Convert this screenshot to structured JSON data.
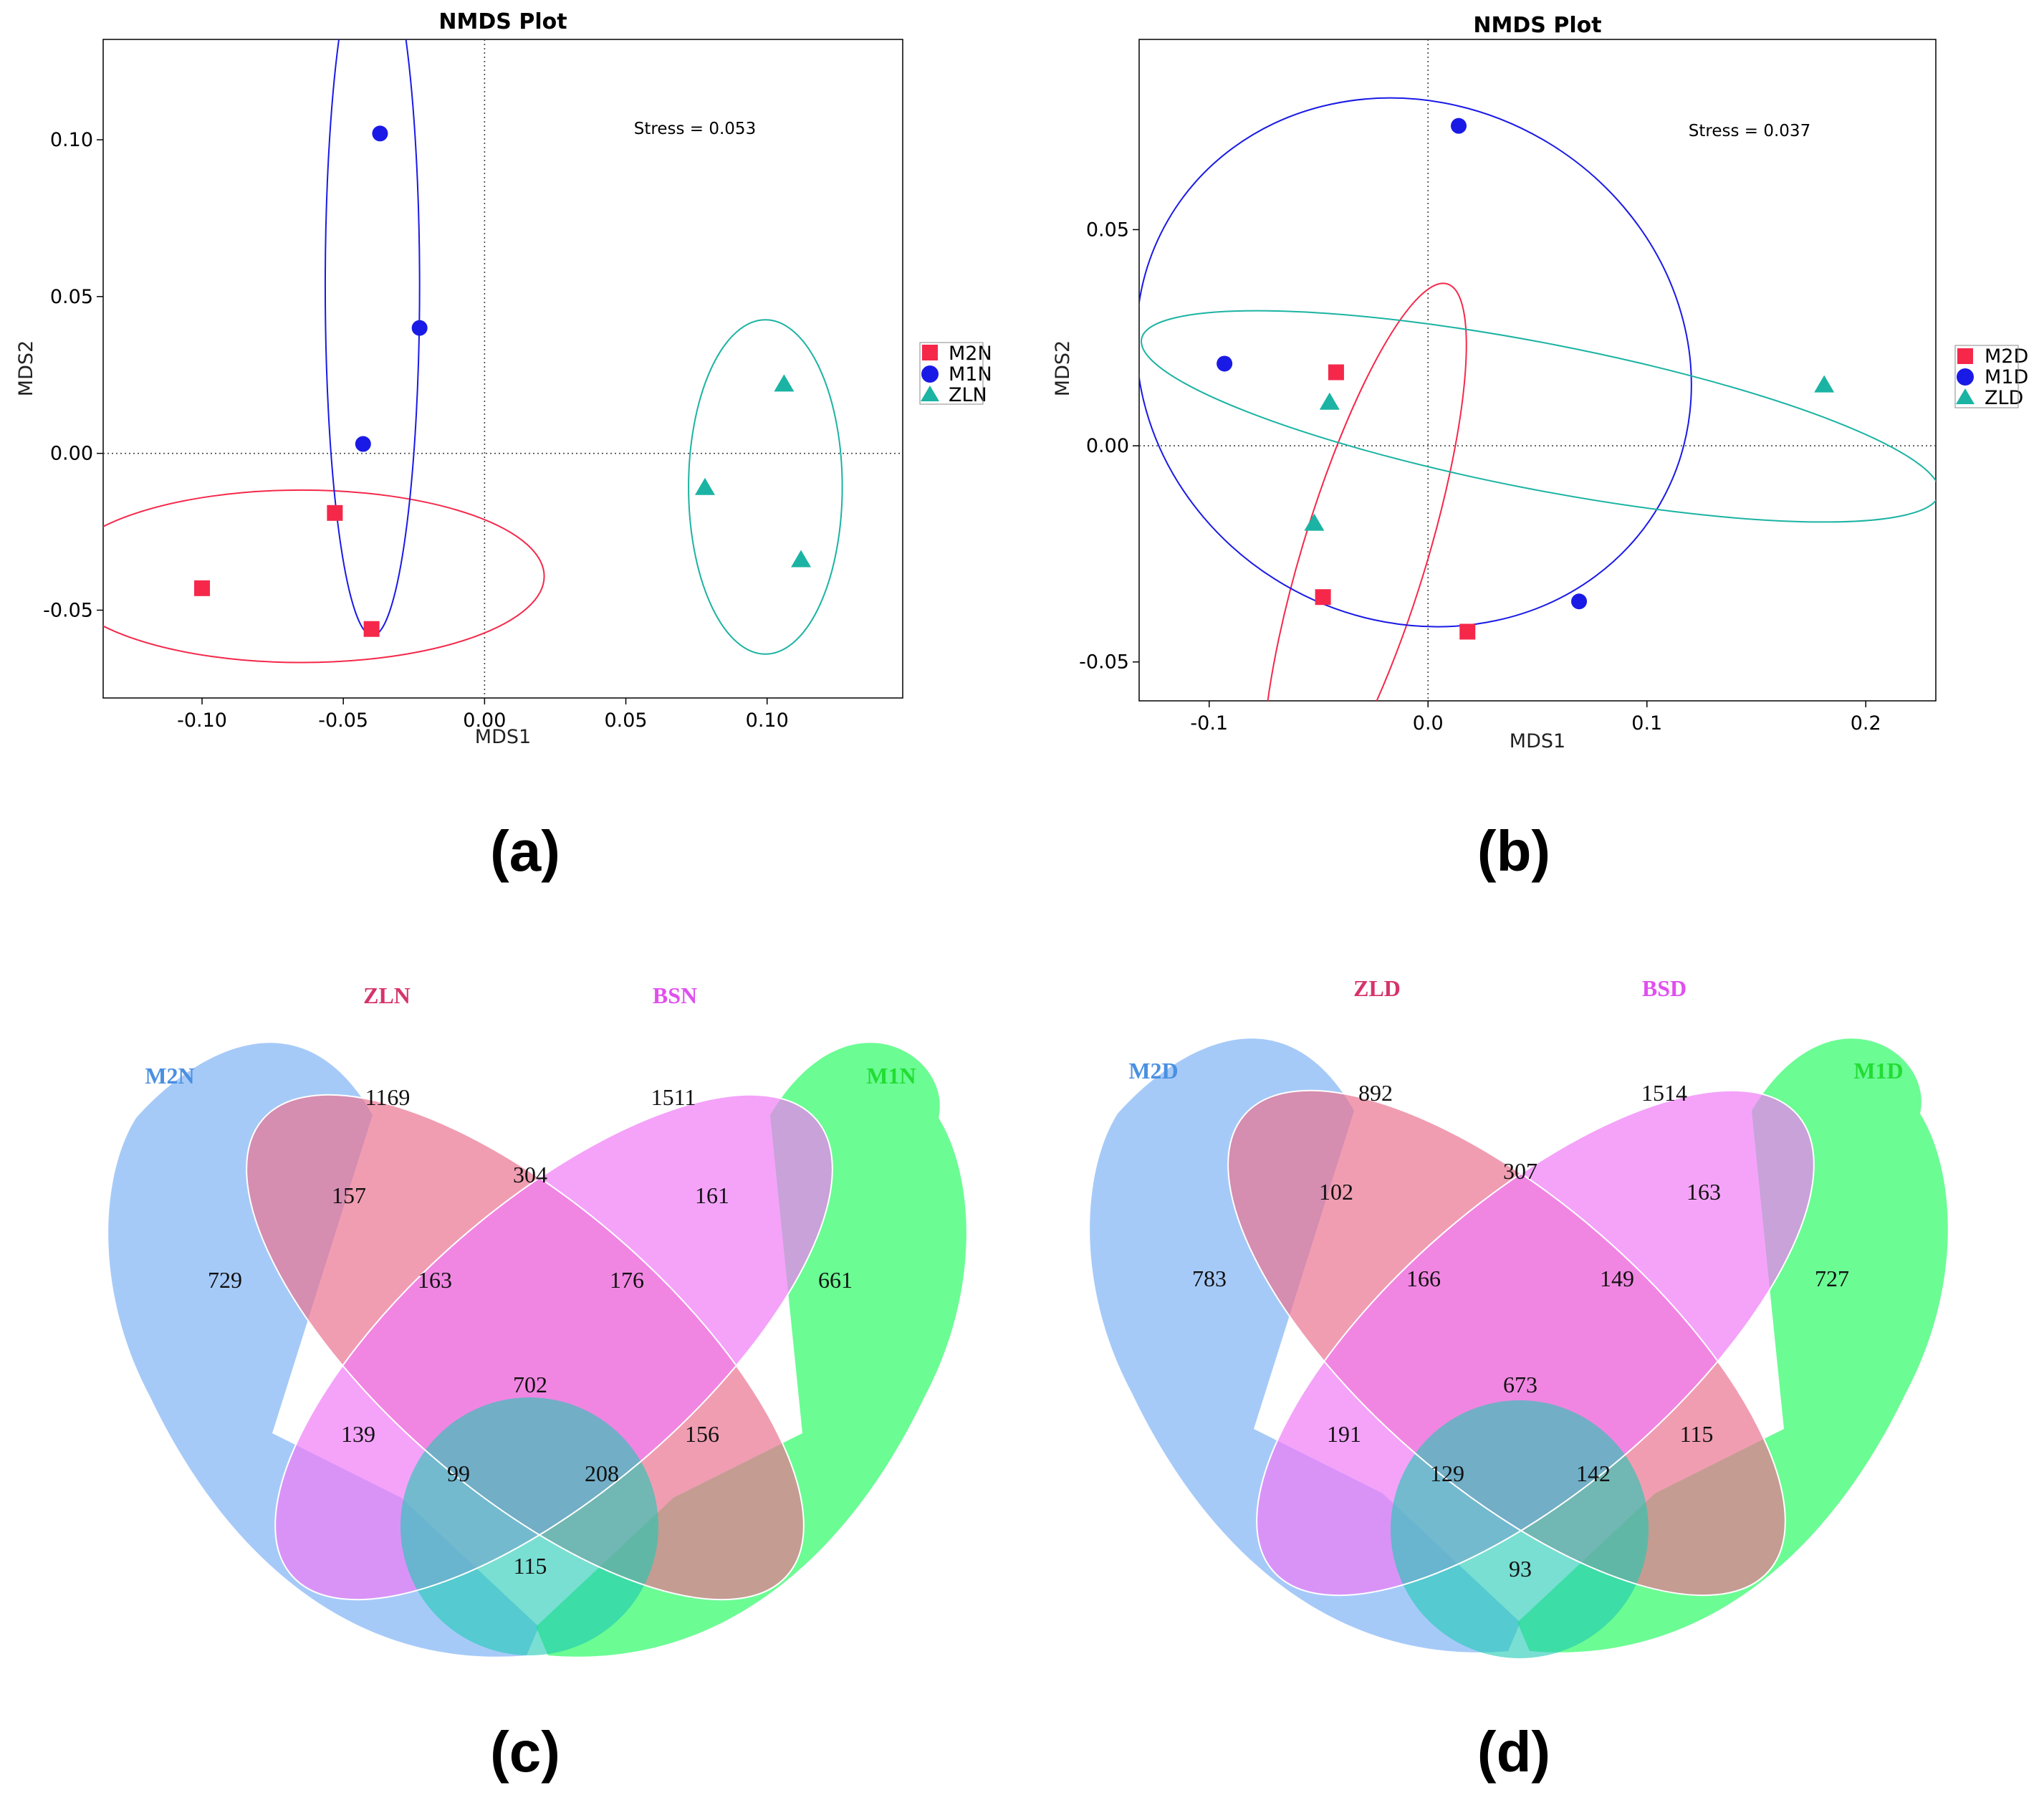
{
  "colors": {
    "red": "#f5284a",
    "blue": "#1a1ae6",
    "teal": "#1bb3a3",
    "venn_blue": "#88b8f5",
    "venn_pink": "#e97492",
    "venn_magenta": "#f07cf7",
    "venn_green": "#2cfb66",
    "venn_teal": "#1ec9b4",
    "label_blue": "#4a90e2",
    "label_crimson": "#d6336c",
    "label_magenta": "#e04ff0",
    "label_green": "#22dd33"
  },
  "panels": {
    "a": "(a)",
    "b": "(b)",
    "c": "(c)",
    "d": "(d)"
  },
  "chart_data": [
    {
      "id": "a",
      "type": "scatter",
      "title": "NMDS Plot",
      "xlabel": "MDS1",
      "ylabel": "MDS2",
      "xlim": [
        -0.135,
        0.148
      ],
      "ylim": [
        -0.078,
        0.132
      ],
      "xticks": [
        -0.1,
        -0.05,
        0.0,
        0.05,
        0.1
      ],
      "xtick_labels": [
        "-0.10",
        "-0.05",
        "0.00",
        "0.05",
        "0.10"
      ],
      "yticks": [
        -0.05,
        0.0,
        0.05,
        0.1
      ],
      "ytick_labels": [
        "-0.05",
        "0.00",
        "0.05",
        "0.10"
      ],
      "annotation": "Stress = 0.053",
      "legend_position": "right",
      "series": [
        {
          "name": "M2N",
          "marker": "square",
          "color": "red",
          "points": [
            [
              -0.053,
              -0.019
            ],
            [
              -0.1,
              -0.043
            ],
            [
              -0.04,
              -0.056
            ]
          ],
          "ellipse": {
            "cx": -0.0648,
            "cy": -0.0392,
            "rx": 0.0859,
            "ry": 0.0275,
            "angle_deg": 0
          }
        },
        {
          "name": "M1N",
          "marker": "circle",
          "color": "blue",
          "points": [
            [
              -0.037,
              0.102
            ],
            [
              -0.023,
              0.04
            ],
            [
              -0.043,
              0.003
            ]
          ],
          "ellipse": {
            "cx": -0.0397,
            "cy": 0.0535,
            "rx": 0.0167,
            "ry": 0.1116,
            "angle_deg": 0
          }
        },
        {
          "name": "ZLN",
          "marker": "triangle",
          "color": "teal",
          "points": [
            [
              0.106,
              0.022
            ],
            [
              0.078,
              -0.011
            ],
            [
              0.112,
              -0.034
            ]
          ],
          "ellipse": {
            "cx": 0.0994,
            "cy": -0.0107,
            "rx": 0.0272,
            "ry": 0.0533,
            "angle_deg": 0
          }
        }
      ]
    },
    {
      "id": "b",
      "type": "scatter",
      "title": "NMDS Plot",
      "xlabel": "MDS1",
      "ylabel": "MDS2",
      "xlim": [
        -0.132,
        0.232
      ],
      "ylim": [
        -0.059,
        0.094
      ],
      "xticks": [
        -0.1,
        0.0,
        0.1,
        0.2
      ],
      "xtick_labels": [
        "-0.1",
        "0.0",
        "0.1",
        "0.2"
      ],
      "yticks": [
        -0.05,
        0.0,
        0.05
      ],
      "ytick_labels": [
        "-0.05",
        "0.00",
        "0.05"
      ],
      "annotation": "Stress = 0.037",
      "legend_position": "right",
      "series": [
        {
          "name": "M2D",
          "marker": "square",
          "color": "red",
          "points": [
            [
              -0.042,
              0.017
            ],
            [
              -0.048,
              -0.035
            ],
            [
              0.018,
              -0.043
            ]
          ],
          "ellipse": {
            "cx": -0.029,
            "cy": -0.0252,
            "rx": 0.0283,
            "ry": 0.0655,
            "angle_deg": 17
          }
        },
        {
          "name": "M1D",
          "marker": "circle",
          "color": "blue",
          "points": [
            [
              0.014,
              0.074
            ],
            [
              -0.093,
              0.019
            ],
            [
              0.069,
              -0.036
            ]
          ],
          "ellipse": {
            "cx": -0.0065,
            "cy": 0.0193,
            "rx": 0.1176,
            "ry": 0.0657,
            "angle_deg": -60
          }
        },
        {
          "name": "ZLD",
          "marker": "triangle",
          "color": "teal",
          "points": [
            [
              0.181,
              0.014
            ],
            [
              -0.045,
              0.01
            ],
            [
              -0.052,
              -0.018
            ]
          ],
          "ellipse": {
            "cx": 0.0513,
            "cy": 0.0068,
            "rx": 0.1856,
            "ry": 0.0169,
            "angle_deg": 11
          }
        }
      ]
    },
    {
      "id": "c",
      "type": "venn",
      "sets": [
        "M2N",
        "ZLN",
        "BSN",
        "M1N"
      ],
      "regions": {
        "M2N_only": 729,
        "ZLN_only": 1169,
        "BSN_only": 1511,
        "M1N_only": 661,
        "M2N_ZLN": 157,
        "ZLN_BSN": 304,
        "BSN_M1N": 161,
        "M2N_ZLN_BSN": 163,
        "ZLN_BSN_M1N": 176,
        "all": 702,
        "M2N_BSN": 139,
        "ZLN_M1N": 156,
        "M2N_BSN_M1N": 99,
        "M2N_ZLN_M1N": 208,
        "M2N_M1N": 115
      }
    },
    {
      "id": "d",
      "type": "venn",
      "sets": [
        "M2D",
        "ZLD",
        "BSD",
        "M1D"
      ],
      "regions": {
        "M2D_only": 783,
        "ZLD_only": 892,
        "BSD_only": 1514,
        "M1D_only": 727,
        "M2D_ZLD": 102,
        "ZLD_BSD": 307,
        "BSD_M1D": 163,
        "M2D_ZLD_BSD": 166,
        "ZLD_BSD_M1D": 149,
        "all": 673,
        "M2D_BSD": 191,
        "ZLD_M1D": 115,
        "M2D_BSD_M1D": 129,
        "M2D_ZLD_M1D": 142,
        "M2D_M1D": 93
      }
    }
  ]
}
